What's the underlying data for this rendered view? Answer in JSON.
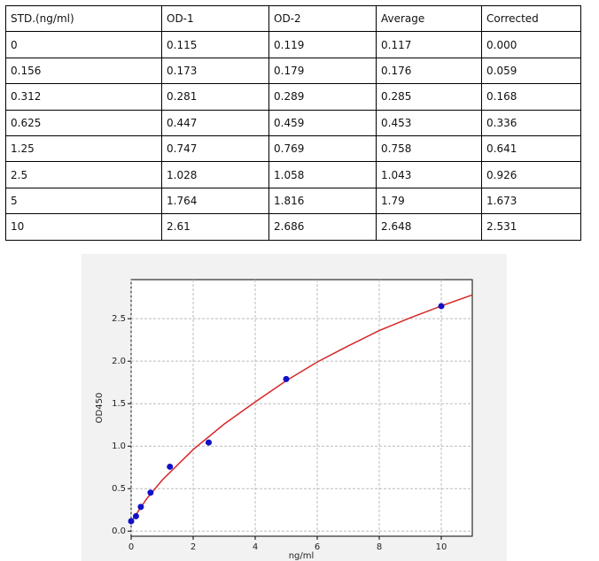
{
  "table": {
    "header": [
      "STD.(ng/ml)",
      "OD-1",
      "OD-2",
      "Average",
      "Corrected"
    ],
    "rows": [
      [
        "0",
        "0.115",
        "0.119",
        "0.117",
        "0.000"
      ],
      [
        "0.156",
        "0.173",
        "0.179",
        "0.176",
        "0.059"
      ],
      [
        "0.312",
        "0.281",
        "0.289",
        "0.285",
        "0.168"
      ],
      [
        "0.625",
        "0.447",
        "0.459",
        "0.453",
        "0.336"
      ],
      [
        "1.25",
        "0.747",
        "0.769",
        "0.758",
        "0.641"
      ],
      [
        "2.5",
        "1.028",
        "1.058",
        "1.043",
        "0.926"
      ],
      [
        "5",
        "1.764",
        "1.816",
        "1.79",
        "1.673"
      ],
      [
        "10",
        "2.61",
        "2.686",
        "2.648",
        "2.531"
      ]
    ]
  },
  "chart_data": {
    "type": "scatter",
    "x_label": "ng/ml",
    "y_label": "OD450",
    "points": {
      "color": "#1010c8",
      "x": [
        0,
        0.156,
        0.312,
        0.625,
        1.25,
        2.5,
        5,
        10
      ],
      "y": [
        0.117,
        0.176,
        0.285,
        0.453,
        0.758,
        1.043,
        1.79,
        2.648
      ]
    },
    "fit": {
      "color": "#d62728",
      "x": [
        0,
        0.5,
        1,
        2,
        3,
        4,
        5,
        6,
        7,
        8,
        9,
        10,
        11
      ],
      "y": [
        0.11,
        0.38,
        0.6,
        0.96,
        1.26,
        1.52,
        1.77,
        1.99,
        2.18,
        2.36,
        2.51,
        2.65,
        2.78
      ]
    },
    "xlim": [
      0,
      11
    ],
    "xticks": [
      0,
      2,
      4,
      6,
      8,
      10
    ],
    "ylim": [
      -0.06,
      2.96
    ],
    "yticks": [
      {
        "value": 0,
        "label": "0.0"
      },
      0.5,
      {
        "value": 1,
        "label": "1.0"
      },
      1.5,
      {
        "value": 2,
        "label": "2.0"
      },
      2.5
    ],
    "grid": true
  }
}
